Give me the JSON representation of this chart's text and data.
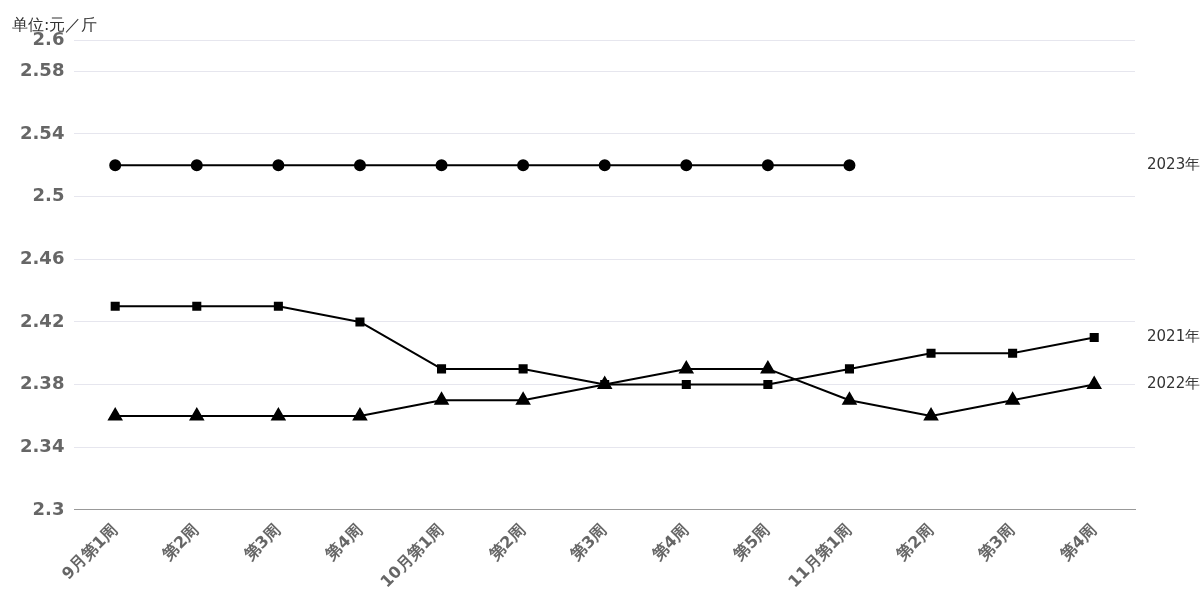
{
  "chart_data": {
    "type": "line",
    "ylabel": "单位:元／斤",
    "categories": [
      "9月第1周",
      "第2周",
      "第3周",
      "第4周",
      "10月第1周",
      "第2周",
      "第3周",
      "第4周",
      "第5周",
      "11月第1周",
      "第2周",
      "第3周",
      "第4周"
    ],
    "series": [
      {
        "name": "2023年",
        "color": "#000000",
        "marker": "circle",
        "values": [
          2.52,
          2.52,
          2.52,
          2.52,
          2.52,
          2.52,
          2.52,
          2.52,
          2.52,
          2.52,
          null,
          null,
          null
        ]
      },
      {
        "name": "2021年",
        "color": "#000000",
        "marker": "square",
        "values": [
          2.43,
          2.43,
          2.43,
          2.42,
          2.39,
          2.39,
          2.38,
          2.38,
          2.38,
          2.39,
          2.4,
          2.4,
          2.41
        ]
      },
      {
        "name": "2022年",
        "color": "#000000",
        "marker": "triangle",
        "values": [
          2.36,
          2.36,
          2.36,
          2.36,
          2.37,
          2.37,
          2.38,
          2.39,
          2.39,
          2.37,
          2.36,
          2.37,
          2.38
        ]
      }
    ],
    "ylim": [
      2.3,
      2.6
    ],
    "yticks": [
      2.3,
      2.34,
      2.38,
      2.42,
      2.46,
      2.5,
      2.54,
      2.58,
      2.6
    ],
    "grid": "y",
    "legend": false,
    "line_style": "solid"
  }
}
